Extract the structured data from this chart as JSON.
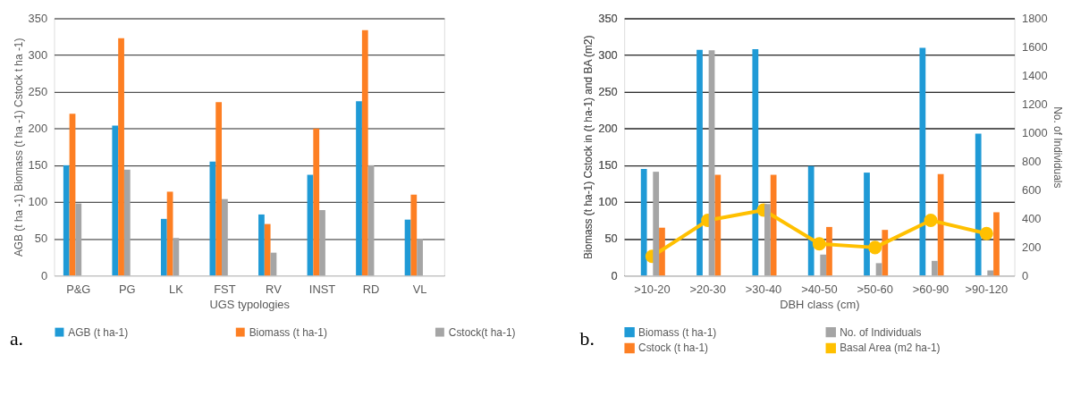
{
  "chart_data": [
    {
      "type": "bar",
      "xlabel": "UGS typologies",
      "ylabel": "AGB (t ha -1) Biomass  (t ha -1) Cstock  t ha -1)",
      "annotations": [
        "a."
      ],
      "categories": [
        "P&G",
        "PG",
        "LK",
        "FST",
        "RV",
        "INST",
        "RD",
        "VL"
      ],
      "series": [
        {
          "name": "AGB (t ha-1)",
          "color": "#1f9ad6",
          "values": [
            150,
            204,
            77,
            155,
            83,
            137,
            237,
            76
          ]
        },
        {
          "name": "Biomass (t ha-1)",
          "color": "#fd7f23",
          "values": [
            220,
            323,
            114,
            236,
            70,
            200,
            334,
            110
          ]
        },
        {
          "name": "Cstock(t ha-1)",
          "color": "#a5a5a5",
          "values": [
            98,
            144,
            51,
            104,
            31,
            89,
            150,
            50
          ]
        }
      ],
      "ylim": [
        0,
        350
      ],
      "yticks": [
        0,
        50,
        100,
        150,
        200,
        250,
        300,
        350
      ],
      "grid": "y",
      "legend": "bottom"
    },
    {
      "type": "bar",
      "xlabel": "DBH class (cm)",
      "ylabel": "Biomass (t ha-1) Cstock in (t ha-1) and BA (m2)",
      "y2label": "No. of Individuals",
      "annotations": [
        "b."
      ],
      "categories": [
        ">10-20",
        ">20-30",
        ">30-40",
        ">40-50",
        ">50-60",
        ">60-90",
        ">90-120"
      ],
      "series": [
        {
          "name": "Biomass (t ha-1)",
          "color": "#1f9ad6",
          "values": [
            145,
            307,
            308,
            149,
            140,
            310,
            193
          ]
        },
        {
          "name": "No. of Individuals",
          "color": "#a5a5a5",
          "axis": "y2",
          "values": [
            726,
            1577,
            500,
            146,
            86,
            102,
            35
          ]
        },
        {
          "name": "Cstock (t ha-1)",
          "color": "#fd7f23",
          "values": [
            65,
            137,
            137,
            66,
            62,
            138,
            86
          ]
        },
        {
          "name": "Basal Area (m2 ha-1)",
          "color": "#ffc000",
          "type": "line",
          "marker": "circle",
          "values": [
            26,
            75,
            89,
            43,
            38,
            75,
            57
          ]
        }
      ],
      "ylim": [
        0,
        350
      ],
      "yticks": [
        0,
        50,
        100,
        150,
        200,
        250,
        300,
        350
      ],
      "y2lim": [
        0,
        1800
      ],
      "y2ticks": [
        0,
        200,
        400,
        600,
        800,
        1000,
        1200,
        1400,
        1600,
        1800
      ],
      "grid": "y",
      "legend": "bottom"
    }
  ]
}
